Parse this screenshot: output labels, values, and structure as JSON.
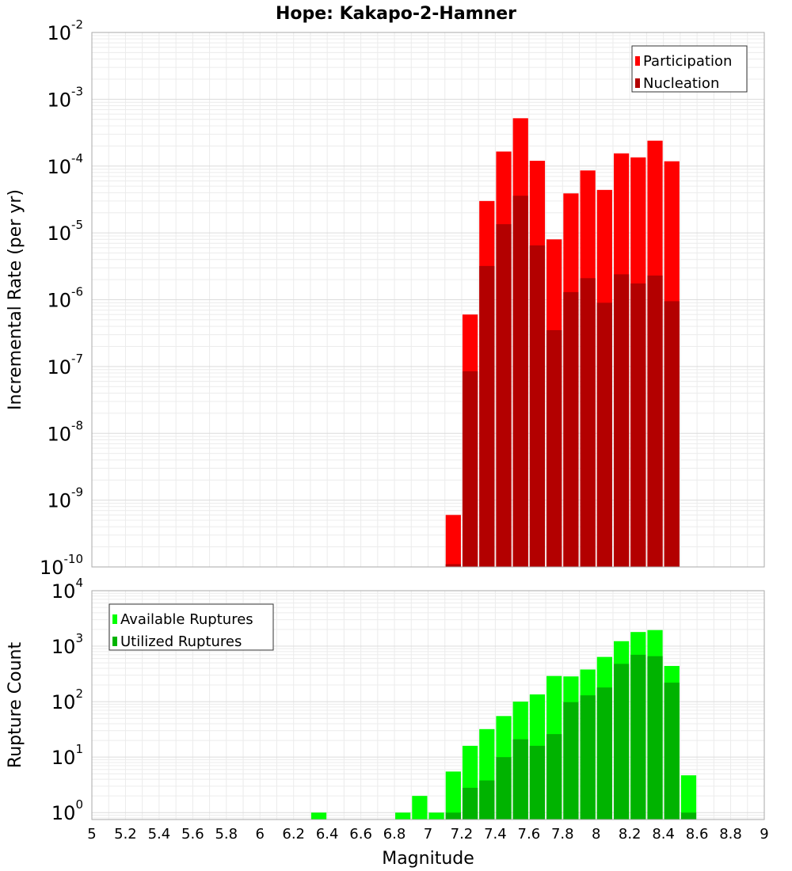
{
  "chart_data": [
    {
      "type": "bar",
      "title": "Hope: Kakapo-2-Hamner",
      "xlabel": "",
      "ylabel": "Incremental Rate (per yr)",
      "yscale": "log",
      "xlim": [
        5,
        9
      ],
      "ylim": [
        1e-10,
        0.01
      ],
      "yticks": [
        {
          "base": "10",
          "exp": "-10",
          "value": 1e-10
        },
        {
          "base": "10",
          "exp": "-9",
          "value": 1e-09
        },
        {
          "base": "10",
          "exp": "-8",
          "value": 1e-08
        },
        {
          "base": "10",
          "exp": "-7",
          "value": 1e-07
        },
        {
          "base": "10",
          "exp": "-6",
          "value": 1e-06
        },
        {
          "base": "10",
          "exp": "-5",
          "value": 1e-05
        },
        {
          "base": "10",
          "exp": "-4",
          "value": 0.0001
        },
        {
          "base": "10",
          "exp": "-3",
          "value": 0.001
        },
        {
          "base": "10",
          "exp": "-2",
          "value": 0.01
        }
      ],
      "grid": true,
      "legend_position": "top-right",
      "x": [
        7.15,
        7.25,
        7.35,
        7.45,
        7.55,
        7.65,
        7.75,
        7.85,
        7.95,
        8.05,
        8.15,
        8.25,
        8.35,
        8.45
      ],
      "series": [
        {
          "name": "Participation",
          "color": "#ff0000",
          "values": [
            6e-10,
            6e-07,
            3e-05,
            0.000165,
            0.00052,
            0.00012,
            8e-06,
            3.9e-05,
            8.6e-05,
            4.4e-05,
            0.000155,
            0.000135,
            0.00024,
            0.000118
          ]
        },
        {
          "name": "Nucleation",
          "color": "#b30000",
          "values": [
            1.1e-10,
            8.5e-08,
            3.2e-06,
            1.35e-05,
            3.6e-05,
            6.5e-06,
            3.5e-07,
            1.3e-06,
            2.1e-06,
            9e-07,
            2.4e-06,
            1.75e-06,
            2.3e-06,
            9.5e-07
          ]
        }
      ]
    },
    {
      "type": "bar",
      "xlabel": "Magnitude",
      "ylabel": "Rupture Count",
      "yscale": "log",
      "xlim": [
        5,
        9
      ],
      "ylim": [
        0.75,
        10000
      ],
      "yticks": [
        {
          "base": "10",
          "exp": "0",
          "value": 1
        },
        {
          "base": "10",
          "exp": "1",
          "value": 10
        },
        {
          "base": "10",
          "exp": "2",
          "value": 100
        },
        {
          "base": "10",
          "exp": "3",
          "value": 1000
        },
        {
          "base": "10",
          "exp": "4",
          "value": 10000
        }
      ],
      "xticks": [
        "5",
        "5.2",
        "5.4",
        "5.6",
        "5.8",
        "6",
        "6.2",
        "6.4",
        "6.6",
        "6.8",
        "7",
        "7.2",
        "7.4",
        "7.6",
        "7.8",
        "8",
        "8.2",
        "8.4",
        "8.6",
        "8.8",
        "9"
      ],
      "grid": true,
      "legend_position": "top-left",
      "x": [
        6.35,
        6.85,
        6.95,
        7.05,
        7.15,
        7.25,
        7.35,
        7.45,
        7.55,
        7.65,
        7.75,
        7.85,
        7.95,
        8.05,
        8.15,
        8.25,
        8.35,
        8.45,
        8.55
      ],
      "series": [
        {
          "name": "Available Ruptures",
          "color": "#00ff00",
          "values": [
            1,
            1,
            2,
            1,
            5.5,
            16,
            32,
            55,
            100,
            135,
            290,
            285,
            380,
            640,
            1230,
            1800,
            1950,
            440,
            4.7
          ]
        },
        {
          "name": "Utilized Ruptures",
          "color": "#00b300",
          "values": [
            0,
            0,
            0,
            0,
            1,
            2.8,
            3.8,
            10,
            21,
            16,
            26,
            98,
            130,
            180,
            480,
            700,
            660,
            220,
            1
          ]
        }
      ]
    }
  ]
}
